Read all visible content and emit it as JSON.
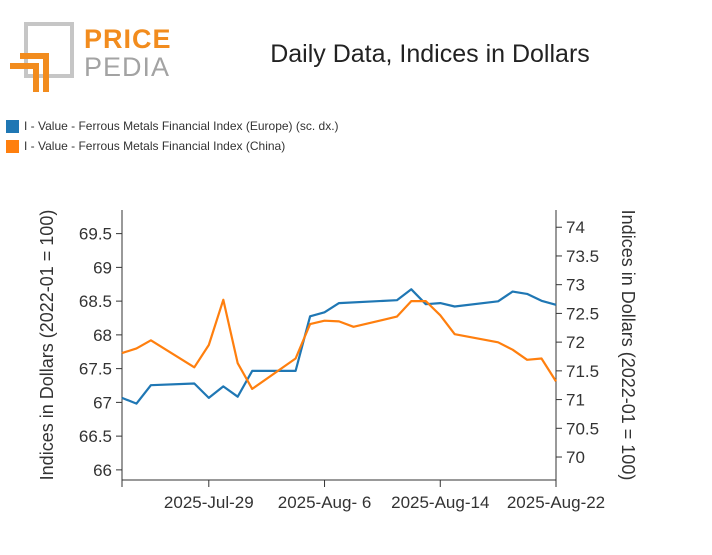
{
  "logo": {
    "word_top": "PRICE",
    "word_bottom": "PEDIA"
  },
  "colors": {
    "europe": "#1f77b4",
    "china": "#ff7f0e",
    "axis": "#333333",
    "logo_orange": "#f28c1e",
    "logo_gray": "#a3a3a3"
  },
  "chart_data": {
    "type": "line",
    "title": "Daily Data, Indices in Dollars",
    "ylabel_left": "Indices in Dollars (2022-01 = 100)",
    "ylabel_right": "Indices in Dollars (2022-01 = 100)",
    "x_tick_labels": [
      "2025-Jul-29",
      "2025-Aug- 6",
      "2025-Aug-14",
      "2025-Aug-22"
    ],
    "x_tick_dates": [
      "2025-07-29",
      "2025-08-06",
      "2025-08-14",
      "2025-08-22"
    ],
    "xlim": [
      "2025-07-23",
      "2025-08-22"
    ],
    "ylim_left": [
      65.85,
      69.85
    ],
    "ylim_right": [
      69.6,
      74.3
    ],
    "y_ticks_left": [
      66,
      66.5,
      67,
      67.5,
      68,
      68.5,
      69,
      69.5
    ],
    "y_ticks_left_labels": [
      "66",
      "66.5",
      "67",
      "67.5",
      "68",
      "68.5",
      "69",
      "69.5"
    ],
    "y_ticks_right": [
      70,
      70.5,
      71,
      71.5,
      72,
      72.5,
      73,
      73.5,
      74
    ],
    "y_ticks_right_labels": [
      "70",
      "70.5",
      "71",
      "71.5",
      "72",
      "72.5",
      "73",
      "73.5",
      "74"
    ],
    "grid": false,
    "legend_placement": "top-left",
    "series": [
      {
        "name": "I - Value - Ferrous Metals Financial Index (Europe) (sc. dx.)",
        "axis": "right",
        "color": "#1f77b4",
        "x": [
          "2025-07-23",
          "2025-07-24",
          "2025-07-25",
          "2025-07-28",
          "2025-07-29",
          "2025-07-30",
          "2025-07-31",
          "2025-08-01",
          "2025-08-04",
          "2025-08-05",
          "2025-08-06",
          "2025-08-07",
          "2025-08-11",
          "2025-08-12",
          "2025-08-13",
          "2025-08-14",
          "2025-08-15",
          "2025-08-18",
          "2025-08-19",
          "2025-08-20",
          "2025-08-21",
          "2025-08-22"
        ],
        "y": [
          71.03,
          70.93,
          71.25,
          71.28,
          71.03,
          71.23,
          71.05,
          71.5,
          71.5,
          72.45,
          72.52,
          72.68,
          72.73,
          72.92,
          72.66,
          72.68,
          72.62,
          72.71,
          72.88,
          72.84,
          72.72,
          72.65
        ]
      },
      {
        "name": "I - Value - Ferrous Metals Financial Index (China)",
        "axis": "left",
        "color": "#ff7f0e",
        "x": [
          "2025-07-23",
          "2025-07-24",
          "2025-07-25",
          "2025-07-28",
          "2025-07-29",
          "2025-07-30",
          "2025-07-31",
          "2025-08-01",
          "2025-08-04",
          "2025-08-05",
          "2025-08-06",
          "2025-08-07",
          "2025-08-08",
          "2025-08-11",
          "2025-08-12",
          "2025-08-13",
          "2025-08-14",
          "2025-08-15",
          "2025-08-18",
          "2025-08-19",
          "2025-08-20",
          "2025-08-21",
          "2025-08-22"
        ],
        "y": [
          67.73,
          67.8,
          67.92,
          67.52,
          67.85,
          68.52,
          67.58,
          67.2,
          67.65,
          68.16,
          68.21,
          68.2,
          68.12,
          68.27,
          68.5,
          68.5,
          68.29,
          68.01,
          67.89,
          67.78,
          67.63,
          67.65,
          67.31
        ]
      }
    ]
  }
}
